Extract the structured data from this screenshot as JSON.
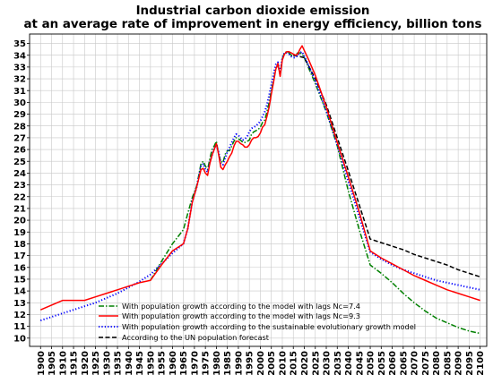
{
  "chart_data": {
    "type": "line",
    "title": [
      "Industrial carbon dioxide emission",
      "at an average rate of improvement in energy efficiency, billion tons"
    ],
    "xlabel": "",
    "ylabel": "",
    "xlim": [
      1895,
      2103
    ],
    "ylim": [
      9.3,
      35.8
    ],
    "grid": true,
    "legend_position": "bottom-left",
    "x_ticks": [
      "1900",
      "1905",
      "1910",
      "1915",
      "1920",
      "1925",
      "1930",
      "1935",
      "1940",
      "1945",
      "1950",
      "1955",
      "1960",
      "1965",
      "1970",
      "1975",
      "1980",
      "1985",
      "1990",
      "1995",
      "2000",
      "2005",
      "2010",
      "2015",
      "2020",
      "2025",
      "2030",
      "2035",
      "2040",
      "2045",
      "2050",
      "2055",
      "2060",
      "2065",
      "2070",
      "2075",
      "2080",
      "2085",
      "2090",
      "2095",
      "2100"
    ],
    "y_ticks": [
      "10",
      "11",
      "12",
      "13",
      "14",
      "15",
      "16",
      "17",
      "18",
      "19",
      "20",
      "21",
      "22",
      "23",
      "24",
      "25",
      "26",
      "27",
      "28",
      "29",
      "30",
      "31",
      "32",
      "33",
      "34",
      "35"
    ],
    "series": [
      {
        "name": "With population growth according to the model with lags Nc=7.4",
        "color": "#008000",
        "style": "dashdot",
        "x": [
          1950,
          1955,
          1960,
          1965,
          1967,
          1969,
          1971,
          1973,
          1974,
          1975,
          1976,
          1977,
          1978,
          1979,
          1980,
          1981,
          1982,
          1983,
          1984,
          1985,
          1986,
          1987,
          1988,
          1989,
          1990,
          1991,
          1992,
          1993,
          1994,
          1995,
          1996,
          1997,
          1998,
          1999,
          2000,
          2001,
          2002,
          2003,
          2004,
          2005,
          2006,
          2007,
          2008,
          2009,
          2010,
          2011,
          2012,
          2013,
          2014,
          2015,
          2016,
          2017,
          2018,
          2019,
          2020,
          2022,
          2025,
          2030,
          2035,
          2040,
          2045,
          2050,
          2055,
          2060,
          2065,
          2070,
          2075,
          2080,
          2085,
          2090,
          2095,
          2100
        ],
        "y": [
          14.9,
          16.5,
          18.0,
          19.2,
          20.6,
          21.9,
          22.9,
          24.8,
          25.0,
          24.6,
          24.3,
          25.2,
          26.0,
          26.3,
          26.7,
          25.6,
          25.0,
          24.9,
          25.6,
          25.9,
          25.9,
          26.3,
          26.7,
          27.0,
          26.9,
          26.8,
          26.6,
          26.6,
          26.7,
          26.8,
          27.3,
          27.5,
          27.6,
          27.7,
          27.9,
          28.3,
          28.5,
          29.2,
          30.0,
          31.0,
          31.8,
          32.8,
          33.2,
          32.3,
          33.7,
          34.2,
          34.3,
          34.2,
          34.0,
          34.0,
          34.0,
          34.2,
          34.2,
          34.1,
          33.8,
          32.9,
          31.6,
          29.2,
          26.3,
          22.5,
          19.2,
          16.2,
          15.5,
          14.7,
          13.8,
          13.0,
          12.3,
          11.7,
          11.3,
          10.9,
          10.6,
          10.4
        ]
      },
      {
        "name": "With population growth according to the model with lags  Nc=9.3",
        "color": "#ff0000",
        "style": "solid",
        "x": [
          1900,
          1905,
          1910,
          1915,
          1920,
          1925,
          1930,
          1935,
          1940,
          1945,
          1950,
          1955,
          1960,
          1965,
          1967,
          1969,
          1971,
          1973,
          1974,
          1975,
          1976,
          1977,
          1978,
          1979,
          1980,
          1981,
          1982,
          1983,
          1984,
          1985,
          1986,
          1987,
          1988,
          1989,
          1990,
          1991,
          1992,
          1993,
          1994,
          1995,
          1996,
          1997,
          1998,
          1999,
          2000,
          2001,
          2002,
          2003,
          2004,
          2005,
          2006,
          2007,
          2008,
          2009,
          2010,
          2011,
          2012,
          2013,
          2014,
          2015,
          2016,
          2017,
          2018,
          2019,
          2020,
          2022,
          2025,
          2030,
          2035,
          2040,
          2045,
          2050,
          2055,
          2060,
          2065,
          2070,
          2075,
          2080,
          2085,
          2090,
          2095,
          2100
        ],
        "y": [
          12.4,
          12.8,
          13.2,
          13.2,
          13.2,
          13.5,
          13.8,
          14.1,
          14.4,
          14.7,
          14.9,
          16.2,
          17.4,
          18.0,
          19.3,
          21.5,
          22.8,
          24.3,
          24.4,
          24.0,
          23.8,
          24.8,
          25.5,
          26.0,
          26.5,
          25.6,
          24.5,
          24.3,
          24.7,
          25.0,
          25.4,
          25.7,
          26.3,
          26.7,
          26.7,
          26.5,
          26.4,
          26.2,
          26.2,
          26.4,
          26.8,
          27.0,
          27.0,
          27.1,
          27.4,
          27.9,
          28.1,
          28.8,
          29.6,
          30.7,
          31.7,
          32.8,
          33.3,
          32.2,
          33.6,
          34.1,
          34.3,
          34.3,
          34.2,
          34.1,
          34.0,
          34.1,
          34.5,
          34.8,
          34.4,
          33.6,
          32.3,
          29.6,
          26.6,
          23.7,
          20.7,
          17.4,
          16.8,
          16.3,
          15.8,
          15.3,
          14.9,
          14.5,
          14.1,
          13.8,
          13.5,
          13.2
        ]
      },
      {
        "name": "With population growth according to the sustainable evolutionary growth model",
        "color": "#0000ff",
        "style": "dotted",
        "x": [
          1900,
          1905,
          1910,
          1915,
          1920,
          1925,
          1930,
          1935,
          1940,
          1945,
          1950,
          1955,
          1960,
          1965,
          1967,
          1969,
          1971,
          1973,
          1974,
          1975,
          1976,
          1977,
          1978,
          1979,
          1980,
          1981,
          1982,
          1983,
          1984,
          1985,
          1986,
          1987,
          1988,
          1989,
          1990,
          1991,
          1992,
          1993,
          1994,
          1995,
          1996,
          1997,
          1998,
          1999,
          2000,
          2001,
          2002,
          2003,
          2004,
          2005,
          2006,
          2007,
          2008,
          2009,
          2010,
          2011,
          2012,
          2013,
          2014,
          2015,
          2016,
          2017,
          2018,
          2019,
          2020,
          2022,
          2025,
          2030,
          2035,
          2040,
          2045,
          2050,
          2055,
          2060,
          2065,
          2070,
          2075,
          2080,
          2085,
          2090,
          2095,
          2100
        ],
        "y": [
          11.5,
          11.8,
          12.1,
          12.4,
          12.7,
          13.0,
          13.4,
          13.8,
          14.3,
          14.8,
          15.4,
          16.3,
          17.2,
          18.0,
          19.3,
          21.6,
          22.8,
          24.6,
          24.8,
          24.3,
          24.1,
          24.9,
          25.5,
          26.1,
          26.4,
          25.8,
          24.8,
          24.7,
          25.3,
          25.8,
          26.2,
          26.6,
          27.0,
          27.3,
          27.2,
          27.0,
          26.8,
          26.9,
          27.1,
          27.5,
          27.8,
          27.9,
          28.0,
          28.2,
          28.4,
          28.8,
          29.2,
          29.8,
          30.6,
          31.5,
          32.4,
          33.2,
          33.4,
          32.5,
          33.8,
          34.2,
          34.2,
          34.1,
          33.9,
          33.8,
          33.8,
          34.0,
          34.2,
          34.3,
          33.9,
          33.1,
          31.8,
          29.3,
          26.4,
          23.3,
          20.3,
          17.3,
          16.7,
          16.2,
          15.8,
          15.5,
          15.2,
          14.9,
          14.7,
          14.5,
          14.3,
          14.1
        ]
      },
      {
        "name": "According to the UN population forecast",
        "color": "#000000",
        "style": "dashed",
        "x": [
          2015,
          2020,
          2025,
          2030,
          2035,
          2040,
          2045,
          2050,
          2055,
          2060,
          2065,
          2070,
          2075,
          2080,
          2085,
          2090,
          2095,
          2100
        ],
        "y": [
          34.0,
          33.8,
          32.0,
          29.8,
          27.0,
          24.2,
          21.3,
          18.4,
          18.1,
          17.8,
          17.5,
          17.1,
          16.8,
          16.5,
          16.2,
          15.8,
          15.5,
          15.2
        ]
      }
    ]
  }
}
